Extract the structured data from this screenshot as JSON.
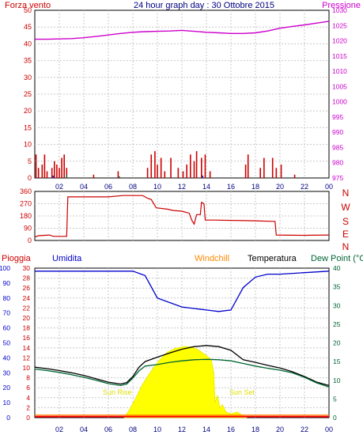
{
  "header": {
    "left_label": "Forza vento",
    "title": "24 hour graph day : 30 Ottobre 2015",
    "right_label": "Pressione"
  },
  "panel2": {
    "compass": [
      "N",
      "W",
      "S",
      "E",
      "N"
    ]
  },
  "panel3_labels": {
    "rain": "Pioggia",
    "humidity": "Umidita",
    "windchill": "Windchill",
    "temperature": "Temperatura",
    "dewpoint": "Dew Point (°C",
    "sunrise": "Sun Rise",
    "sunset": "Sun Set"
  },
  "colors": {
    "wind": "#cc0000",
    "pressure": "#cc00cc",
    "direction": "#cc0000",
    "humidity": "#0000cc",
    "temperature": "#000000",
    "dewpoint": "#006633",
    "sun": "#ffff00",
    "rain": "#ff0000",
    "windchill": "#ff8800",
    "grid": "#c8c8c8"
  },
  "chart_data": [
    {
      "type": "bar",
      "title": "24 hour graph day : 30 Ottobre 2015",
      "x_ticks": [
        "02",
        "04",
        "06",
        "08",
        "10",
        "12",
        "14",
        "16",
        "18",
        "20",
        "22",
        "00"
      ],
      "y_left": {
        "label": "Forza vento",
        "ticks": [
          0,
          5,
          10,
          15,
          20,
          25,
          30,
          35,
          40,
          45,
          50
        ],
        "range": [
          0,
          50
        ]
      },
      "y_right": {
        "label": "Pressione",
        "ticks": [
          975,
          980,
          985,
          990,
          995,
          1000,
          1005,
          1010,
          1015,
          1020,
          1025,
          1030
        ],
        "range": [
          975,
          1030
        ]
      },
      "series": [
        {
          "name": "Forza vento",
          "kind": "bars",
          "points": [
            [
              0.1,
              7
            ],
            [
              0.3,
              3
            ],
            [
              0.6,
              4
            ],
            [
              0.8,
              7
            ],
            [
              1.0,
              2
            ],
            [
              1.4,
              3
            ],
            [
              1.6,
              5
            ],
            [
              1.8,
              4
            ],
            [
              2.0,
              3
            ],
            [
              2.2,
              6
            ],
            [
              2.4,
              7
            ],
            [
              2.6,
              3
            ],
            [
              4.8,
              1
            ],
            [
              6.8,
              2
            ],
            [
              9.2,
              3
            ],
            [
              9.5,
              7
            ],
            [
              9.8,
              8
            ],
            [
              10.0,
              4
            ],
            [
              10.3,
              6
            ],
            [
              10.6,
              2
            ],
            [
              11.1,
              6
            ],
            [
              11.7,
              3
            ],
            [
              12.1,
              2
            ],
            [
              12.4,
              4
            ],
            [
              12.7,
              7
            ],
            [
              13.0,
              5
            ],
            [
              13.2,
              8
            ],
            [
              13.6,
              6
            ],
            [
              13.9,
              7
            ],
            [
              14.3,
              2
            ],
            [
              17.2,
              4
            ],
            [
              17.4,
              7
            ],
            [
              18.4,
              3
            ],
            [
              18.7,
              6
            ],
            [
              19.4,
              6
            ],
            [
              19.7,
              3
            ],
            [
              20.1,
              4
            ],
            [
              21.2,
              1
            ]
          ]
        },
        {
          "name": "Pressione",
          "kind": "line",
          "points": [
            [
              0,
              1020.5
            ],
            [
              1,
              1020.5
            ],
            [
              2,
              1020.6
            ],
            [
              3,
              1020.7
            ],
            [
              4,
              1021.0
            ],
            [
              5,
              1021.4
            ],
            [
              6,
              1021.9
            ],
            [
              7,
              1022.4
            ],
            [
              8,
              1022.8
            ],
            [
              9,
              1023.0
            ],
            [
              10,
              1023.1
            ],
            [
              11,
              1023.2
            ],
            [
              12,
              1023.4
            ],
            [
              13,
              1023.1
            ],
            [
              14,
              1022.8
            ],
            [
              15,
              1022.6
            ],
            [
              16,
              1022.4
            ],
            [
              17,
              1022.4
            ],
            [
              18,
              1022.6
            ],
            [
              19,
              1023.2
            ],
            [
              20,
              1024.1
            ],
            [
              21,
              1024.7
            ],
            [
              22,
              1025.2
            ],
            [
              23,
              1025.8
            ],
            [
              24,
              1026.4
            ]
          ]
        }
      ]
    },
    {
      "type": "line",
      "title": "",
      "y_left": {
        "ticks": [
          0,
          90,
          180,
          270,
          360
        ],
        "range": [
          0,
          360
        ]
      },
      "series": [
        {
          "name": "",
          "points": [
            [
              0,
              25
            ],
            [
              0.3,
              35
            ],
            [
              1.2,
              40
            ],
            [
              1.5,
              30
            ],
            [
              2.6,
              30
            ],
            [
              2.7,
              320
            ],
            [
              6.0,
              320
            ],
            [
              7.2,
              330
            ],
            [
              8.8,
              330
            ],
            [
              9.2,
              310
            ],
            [
              9.5,
              300
            ],
            [
              9.9,
              240
            ],
            [
              10.8,
              230
            ],
            [
              11.3,
              220
            ],
            [
              12.0,
              215
            ],
            [
              12.6,
              200
            ],
            [
              12.8,
              150
            ],
            [
              13.0,
              120
            ],
            [
              13.2,
              190
            ],
            [
              13.5,
              190
            ],
            [
              13.6,
              280
            ],
            [
              13.8,
              270
            ],
            [
              13.9,
              150
            ],
            [
              14.5,
              150
            ],
            [
              17.5,
              145
            ],
            [
              19.6,
              140
            ],
            [
              19.7,
              40
            ],
            [
              22,
              38
            ],
            [
              24,
              40
            ]
          ]
        }
      ]
    },
    {
      "type": "line",
      "title": "",
      "y_left": {
        "ticks": [
          0,
          2,
          4,
          6,
          8,
          10,
          12,
          14,
          16,
          18,
          20,
          22,
          24,
          26,
          28,
          30
        ],
        "range": [
          0,
          30
        ],
        "outer_ticks": [
          0,
          10,
          20,
          30,
          40,
          50,
          60,
          70,
          80,
          90,
          100
        ]
      },
      "y_right": {
        "ticks": [
          0,
          5,
          10,
          15,
          20,
          25,
          30,
          35,
          40
        ],
        "range": [
          0,
          40
        ]
      },
      "series": [
        {
          "name": "Umidita",
          "points": [
            [
              0,
              98
            ],
            [
              2,
              98
            ],
            [
              4,
              98
            ],
            [
              6,
              98
            ],
            [
              8,
              98
            ],
            [
              9,
              95
            ],
            [
              10,
              80
            ],
            [
              11,
              77
            ],
            [
              12,
              74
            ],
            [
              13,
              73
            ],
            [
              14,
              72
            ],
            [
              15,
              71
            ],
            [
              16,
              72
            ],
            [
              17,
              87
            ],
            [
              18,
              94
            ],
            [
              19,
              96
            ],
            [
              20,
              96
            ],
            [
              22,
              97
            ],
            [
              24,
              98
            ]
          ]
        },
        {
          "name": "Temperatura",
          "points": [
            [
              0,
              13.5
            ],
            [
              1,
              13.1
            ],
            [
              2,
              12.6
            ],
            [
              3,
              12.0
            ],
            [
              4,
              11.3
            ],
            [
              5,
              10.4
            ],
            [
              6,
              9.5
            ],
            [
              7,
              9.0
            ],
            [
              7.5,
              9.4
            ],
            [
              8,
              11.0
            ],
            [
              8.5,
              13.5
            ],
            [
              9,
              15.0
            ],
            [
              10,
              16.2
            ],
            [
              11,
              17.3
            ],
            [
              12,
              18.3
            ],
            [
              13,
              19.0
            ],
            [
              14,
              19.3
            ],
            [
              15,
              19.0
            ],
            [
              16,
              18.0
            ],
            [
              17,
              15.5
            ],
            [
              18,
              14.8
            ],
            [
              19,
              14.0
            ],
            [
              20,
              13.3
            ],
            [
              21,
              12.3
            ],
            [
              22,
              11.0
            ],
            [
              23,
              9.5
            ],
            [
              24,
              8.6
            ]
          ]
        },
        {
          "name": "Dew Point",
          "points": [
            [
              0,
              13.0
            ],
            [
              1,
              12.6
            ],
            [
              2,
              12.1
            ],
            [
              3,
              11.5
            ],
            [
              4,
              10.8
            ],
            [
              5,
              10.0
            ],
            [
              6,
              9.1
            ],
            [
              7,
              8.6
            ],
            [
              7.5,
              9.0
            ],
            [
              8,
              10.6
            ],
            [
              8.5,
              12.5
            ],
            [
              9,
              13.8
            ],
            [
              10,
              14.2
            ],
            [
              11,
              14.8
            ],
            [
              12,
              15.2
            ],
            [
              13,
              15.5
            ],
            [
              14,
              15.6
            ],
            [
              15,
              15.5
            ],
            [
              16,
              15.2
            ],
            [
              17,
              14.5
            ],
            [
              18,
              13.8
            ],
            [
              19,
              13.2
            ],
            [
              20,
              12.7
            ],
            [
              21,
              12.0
            ],
            [
              22,
              10.8
            ],
            [
              23,
              9.3
            ],
            [
              24,
              8.2
            ]
          ]
        },
        {
          "name": "Solar",
          "kind": "area",
          "points": [
            [
              7.3,
              0
            ],
            [
              7.7,
              2
            ],
            [
              8.2,
              5
            ],
            [
              8.8,
              9
            ],
            [
              9.5,
              12.5
            ],
            [
              10.2,
              15.5
            ],
            [
              10.8,
              17.5
            ],
            [
              11.5,
              18.6
            ],
            [
              12.2,
              19.0
            ],
            [
              12.8,
              18.9
            ],
            [
              13.4,
              18.0
            ],
            [
              14.0,
              16.6
            ],
            [
              14.4,
              15.5
            ],
            [
              14.6,
              12
            ],
            [
              14.7,
              4
            ],
            [
              14.9,
              6
            ],
            [
              15.1,
              2.5
            ],
            [
              15.3,
              3.5
            ],
            [
              15.6,
              1.5
            ],
            [
              16.0,
              1
            ],
            [
              16.5,
              1.5
            ],
            [
              17.0,
              0.5
            ],
            [
              17.3,
              0
            ]
          ]
        },
        {
          "name": "Pioggia",
          "points": [
            [
              0,
              0.3
            ],
            [
              24,
              0.3
            ]
          ]
        },
        {
          "name": "Windchill",
          "points": [
            [
              0,
              0.7
            ],
            [
              24,
              0.7
            ]
          ]
        }
      ]
    }
  ]
}
